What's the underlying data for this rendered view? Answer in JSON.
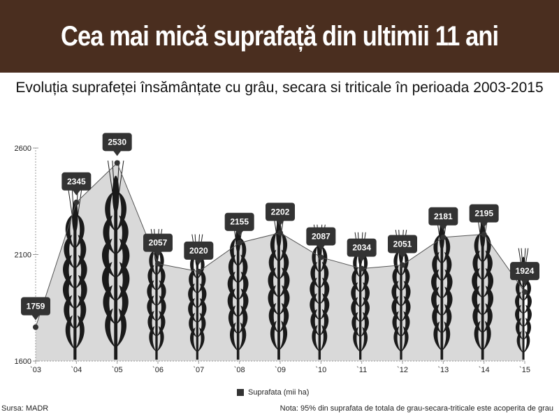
{
  "header": {
    "title": "Cea mai mică suprafață din ultimii 11 ani"
  },
  "colors": {
    "header_bg": "#4a2e1f",
    "area": "#d9d9d9",
    "line": "#555555",
    "marker": "#333333",
    "label_bg": "#333333",
    "wheat": "#1a1a1a"
  },
  "chart_data": {
    "type": "area",
    "title": "Evoluția suprafeței însămânțate cu grâu, secara si triticale în perioada 2003-2015",
    "categories": [
      "`03",
      "`04",
      "`05",
      "`06",
      "`07",
      "`08",
      "`09",
      "`10",
      "`11",
      "`12",
      "`13",
      "`14",
      "`15"
    ],
    "series": [
      {
        "name": "Suprafata (mii ha)",
        "values": [
          1759,
          2345,
          2530,
          2057,
          2020,
          2155,
          2202,
          2087,
          2034,
          2051,
          2181,
          2195,
          1924
        ]
      }
    ],
    "yticks": [
      1600,
      2100,
      2600
    ],
    "ylim": [
      1600,
      2600
    ],
    "legend": "bottom-center",
    "grid": false
  },
  "footer": {
    "source": "Sursa: MADR",
    "note": "Nota: 95% din suprafata de totala de grau-secara-triticale este acoperita de grau"
  }
}
